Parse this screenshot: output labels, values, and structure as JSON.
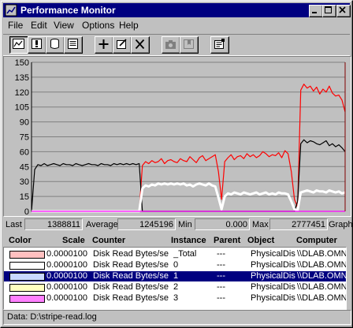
{
  "window": {
    "title": "Performance Monitor"
  },
  "menu": [
    "File",
    "Edit",
    "View",
    "Options",
    "Help"
  ],
  "toolbar": {
    "buttons": [
      "chart-view",
      "alert-view",
      "log-view",
      "report-view",
      "add-counter",
      "edit-counter",
      "delete-counter",
      "update-data",
      "bookmark",
      "options"
    ]
  },
  "chart_data": {
    "type": "line",
    "ylim": [
      0,
      150
    ],
    "y_ticks": [
      "150",
      "135",
      "120",
      "105",
      "90",
      "75",
      "60",
      "45",
      "30",
      "15",
      "0"
    ],
    "grid": "horizontal",
    "x": [
      0,
      1,
      2,
      3,
      4,
      5,
      6,
      7,
      8,
      9,
      10,
      11,
      12,
      13,
      14,
      15,
      16,
      17,
      18,
      19,
      20,
      21,
      22,
      23,
      24,
      25,
      26,
      27,
      28,
      29,
      30,
      31,
      32,
      33,
      34,
      35,
      36,
      37,
      38,
      39,
      40,
      41,
      42,
      43,
      44,
      45,
      46,
      47,
      48,
      49,
      50,
      51,
      52,
      53,
      54,
      55,
      56,
      57,
      58,
      59,
      60,
      61,
      62,
      63,
      64,
      65,
      66,
      67,
      68,
      69,
      70,
      71,
      72,
      73,
      74,
      75,
      76,
      77,
      78,
      79,
      80,
      81,
      82,
      83,
      84,
      85,
      86,
      87,
      88,
      89,
      90,
      91,
      92,
      93,
      94,
      95,
      96,
      97,
      98,
      99
    ],
    "series": [
      {
        "color": "#ff0000",
        "values": [
          0,
          0,
          0,
          0,
          0,
          0,
          0,
          0,
          0,
          0,
          0,
          0,
          0,
          0,
          0,
          0,
          0,
          0,
          0,
          0,
          0,
          0,
          0,
          0,
          0,
          0,
          0,
          0,
          0,
          0,
          0,
          0,
          0,
          0,
          0,
          46,
          50,
          48,
          51,
          49,
          50,
          53,
          48,
          51,
          52,
          50,
          49,
          53,
          51,
          50,
          55,
          52,
          49,
          54,
          56,
          51,
          53,
          55,
          57,
          40,
          12,
          50,
          54,
          57,
          52,
          55,
          56,
          53,
          58,
          55,
          57,
          54,
          56,
          60,
          58,
          55,
          57,
          56,
          59,
          54,
          61,
          58,
          40,
          12,
          4,
          122,
          128,
          124,
          126,
          121,
          125,
          118,
          123,
          120,
          126,
          119,
          116,
          117,
          112,
          100
        ]
      },
      {
        "color": "#000000",
        "values": [
          0,
          42,
          47,
          46,
          48,
          46,
          47,
          48,
          47,
          46,
          48,
          47,
          47,
          46,
          48,
          47,
          46,
          47,
          48,
          47,
          47,
          46,
          48,
          47,
          47,
          46,
          48,
          47,
          48,
          47,
          48,
          47,
          48,
          47,
          48,
          0,
          0,
          0,
          0,
          0,
          0,
          0,
          0,
          0,
          0,
          0,
          0,
          0,
          0,
          0,
          0,
          0,
          0,
          0,
          0,
          0,
          0,
          0,
          0,
          0,
          0,
          0,
          0,
          0,
          0,
          0,
          0,
          0,
          0,
          0,
          0,
          0,
          0,
          0,
          0,
          0,
          0,
          0,
          0,
          0,
          0,
          0,
          0,
          0,
          10,
          68,
          72,
          69,
          71,
          70,
          68,
          67,
          69,
          71,
          66,
          68,
          65,
          67,
          64,
          60
        ]
      },
      {
        "color": "#ffffff",
        "values": [
          0,
          0,
          0,
          0,
          0,
          0,
          0,
          0,
          0,
          0,
          0,
          0,
          0,
          0,
          0,
          0,
          0,
          0,
          0,
          0,
          0,
          0,
          0,
          0,
          0,
          0,
          0,
          0,
          0,
          0,
          0,
          0,
          0,
          0,
          0,
          23,
          26,
          25,
          27,
          26,
          28,
          27,
          28,
          27,
          28,
          27,
          28,
          27,
          28,
          26,
          27,
          25,
          27,
          28,
          27,
          26,
          28,
          26,
          25,
          14,
          2,
          15,
          18,
          17,
          19,
          18,
          17,
          19,
          18,
          17,
          18,
          19,
          17,
          18,
          19,
          17,
          18,
          17,
          19,
          18,
          18,
          17,
          10,
          2,
          1,
          19,
          20,
          21,
          20,
          19,
          21,
          20,
          20,
          19,
          21,
          20,
          19,
          20,
          18,
          19
        ]
      },
      {
        "color": "#ff00ff",
        "values": [
          0,
          0,
          0,
          0,
          0,
          0,
          0,
          0,
          0,
          0,
          0,
          0,
          0,
          0,
          0,
          0,
          0,
          0,
          0,
          0,
          0,
          0,
          0,
          0,
          0,
          0,
          0,
          0,
          0,
          0,
          0,
          0,
          0,
          0,
          0,
          0,
          0,
          0,
          0,
          0,
          0,
          0,
          0,
          0,
          0,
          0,
          0,
          0,
          0,
          0,
          0,
          0,
          0,
          0,
          0,
          0,
          0,
          0,
          0,
          0,
          0,
          0,
          0,
          0,
          0,
          0,
          0,
          0,
          0,
          0,
          0,
          0,
          0,
          0,
          0,
          0,
          0,
          0,
          0,
          0,
          0,
          0,
          0,
          0,
          0,
          0,
          0,
          0,
          0,
          0,
          0,
          0,
          0,
          0,
          0,
          0,
          0,
          0,
          0,
          0
        ]
      }
    ]
  },
  "stats": {
    "last_label": "Last",
    "last": "1388811",
    "avg_label": "Average",
    "avg": "1245196",
    "min_label": "Min",
    "min": "0.000",
    "max_label": "Max",
    "max": "2777451",
    "graph_label": "Graph"
  },
  "legend": {
    "headers": {
      "color": "Color",
      "scale": "Scale",
      "counter": "Counter",
      "instance": "Instance",
      "parent": "Parent",
      "object": "Object",
      "computer": "Computer"
    },
    "rows": [
      {
        "color": "#ffc0c0",
        "scale": "0.0000100",
        "counter": "Disk Read Bytes/se",
        "instance": "_Total",
        "parent": "---",
        "object": "PhysicalDisk",
        "computer": "\\\\DLAB.OMN"
      },
      {
        "color": "#ffffff",
        "scale": "0.0000100",
        "counter": "Disk Read Bytes/se",
        "instance": "0",
        "parent": "---",
        "object": "PhysicalDisk",
        "computer": "\\\\DLAB.OMN"
      },
      {
        "color": "#c8d8ff",
        "scale": "0.0000100",
        "counter": "Disk Read Bytes/se",
        "instance": "1",
        "parent": "---",
        "object": "PhysicalDisk",
        "computer": "\\\\DLAB.OMN"
      },
      {
        "color": "#ffffc0",
        "scale": "0.0000100",
        "counter": "Disk Read Bytes/se",
        "instance": "2",
        "parent": "---",
        "object": "PhysicalDisk",
        "computer": "\\\\DLAB.OMN"
      },
      {
        "color": "#ff80ff",
        "scale": "0.0000100",
        "counter": "Disk Read Bytes/se",
        "instance": "3",
        "parent": "---",
        "object": "PhysicalDisk",
        "computer": "\\\\DLAB.OMN"
      }
    ],
    "selected_index": 2
  },
  "status": {
    "text": "Data: D:\\stripe-read.log"
  }
}
